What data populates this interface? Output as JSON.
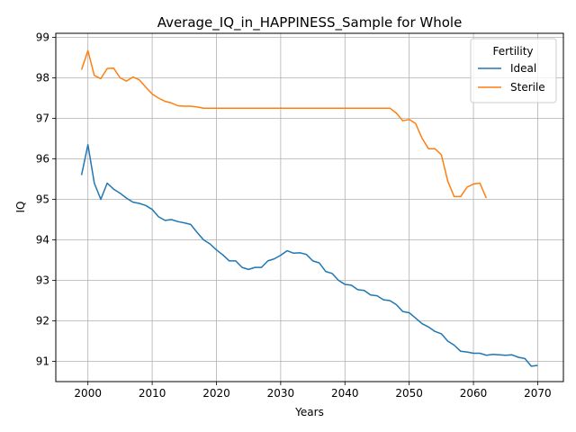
{
  "chart_data": {
    "type": "line",
    "title": "Average_IQ_in_HAPPINESS_Sample for Whole",
    "xlabel": "Years",
    "ylabel": "IQ",
    "xlim": [
      1995,
      2074
    ],
    "ylim": [
      90.5,
      99.1
    ],
    "xticks": [
      2000,
      2010,
      2020,
      2030,
      2040,
      2050,
      2060,
      2070
    ],
    "yticks": [
      91,
      92,
      93,
      94,
      95,
      96,
      97,
      98,
      99
    ],
    "grid": true,
    "legend": {
      "title": "Fertility",
      "position": "upper right"
    },
    "series": [
      {
        "name": "Ideal",
        "color": "#1f77b4",
        "x": [
          1999,
          2000,
          2001,
          2002,
          2003,
          2004,
          2005,
          2006,
          2007,
          2008,
          2009,
          2010,
          2011,
          2012,
          2013,
          2014,
          2015,
          2016,
          2017,
          2018,
          2019,
          2020,
          2021,
          2022,
          2023,
          2024,
          2025,
          2026,
          2027,
          2028,
          2029,
          2030,
          2031,
          2032,
          2033,
          2034,
          2035,
          2036,
          2037,
          2038,
          2039,
          2040,
          2041,
          2042,
          2043,
          2044,
          2045,
          2046,
          2047,
          2048,
          2049,
          2050,
          2051,
          2052,
          2053,
          2054,
          2055,
          2056,
          2057,
          2058,
          2059,
          2060,
          2061,
          2062,
          2063,
          2064,
          2065,
          2066,
          2067,
          2068,
          2069,
          2070
        ],
        "y": [
          95.6,
          96.35,
          95.4,
          95.0,
          95.4,
          95.25,
          95.15,
          95.03,
          94.93,
          94.9,
          94.85,
          94.75,
          94.57,
          94.48,
          94.5,
          94.45,
          94.42,
          94.38,
          94.18,
          94.0,
          93.9,
          93.75,
          93.63,
          93.48,
          93.48,
          93.32,
          93.27,
          93.32,
          93.32,
          93.48,
          93.53,
          93.62,
          93.73,
          93.67,
          93.68,
          93.64,
          93.48,
          93.43,
          93.22,
          93.17,
          93.0,
          92.9,
          92.88,
          92.77,
          92.75,
          92.64,
          92.62,
          92.52,
          92.5,
          92.4,
          92.23,
          92.2,
          92.07,
          91.93,
          91.85,
          91.74,
          91.68,
          91.5,
          91.4,
          91.25,
          91.23,
          91.2,
          91.2,
          91.15,
          91.17,
          91.16,
          91.15,
          91.16,
          91.1,
          91.07,
          90.88,
          90.9
        ]
      },
      {
        "name": "Sterile",
        "color": "#ff7f0e",
        "x": [
          1999,
          2000,
          2001,
          2002,
          2003,
          2004,
          2005,
          2006,
          2007,
          2008,
          2009,
          2010,
          2011,
          2012,
          2013,
          2014,
          2015,
          2016,
          2017,
          2018,
          2019,
          2020,
          2021,
          2022,
          2023,
          2024,
          2025,
          2026,
          2027,
          2028,
          2029,
          2030,
          2031,
          2032,
          2033,
          2034,
          2035,
          2036,
          2037,
          2038,
          2039,
          2040,
          2041,
          2042,
          2043,
          2044,
          2045,
          2046,
          2047,
          2048,
          2049,
          2050,
          2051,
          2052,
          2053,
          2054,
          2055,
          2056,
          2057,
          2058,
          2059,
          2060,
          2061,
          2062
        ],
        "y": [
          98.2,
          98.67,
          98.06,
          97.98,
          98.23,
          98.24,
          98.0,
          97.92,
          98.02,
          97.95,
          97.77,
          97.6,
          97.5,
          97.42,
          97.38,
          97.31,
          97.3,
          97.3,
          97.28,
          97.25,
          97.25,
          97.25,
          97.25,
          97.25,
          97.25,
          97.25,
          97.25,
          97.25,
          97.25,
          97.25,
          97.25,
          97.25,
          97.25,
          97.25,
          97.25,
          97.25,
          97.25,
          97.25,
          97.25,
          97.25,
          97.25,
          97.25,
          97.25,
          97.25,
          97.25,
          97.25,
          97.25,
          97.25,
          97.25,
          97.13,
          96.94,
          96.97,
          96.87,
          96.51,
          96.25,
          96.25,
          96.1,
          95.45,
          95.07,
          95.07,
          95.3,
          95.38,
          95.4,
          95.03
        ]
      }
    ]
  }
}
